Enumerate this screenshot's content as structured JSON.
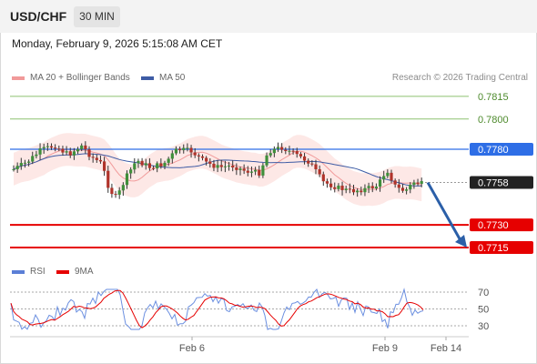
{
  "header": {
    "symbol": "USD/CHF",
    "timeframe": "30 MIN"
  },
  "datetime": "Monday, February 9, 2026 5:15:08 AM CET",
  "legend": {
    "ma20_label": "MA 20 + Bollinger Bands",
    "ma50_label": "MA 50",
    "credit": "Research © 2026 Trading Central",
    "rsi_label": "RSI",
    "ma9_label": "9MA"
  },
  "colors": {
    "ma20": "#f19a9a",
    "ma50": "#3e5ca5",
    "bull": "#3f8f3a",
    "bear": "#b0332a",
    "resistance": "#8dc270",
    "support": "#e60000",
    "pivot": "#2e6ee6",
    "arrow": "#2b5fa8"
  },
  "chart_data": {
    "type": "candlestick",
    "price_levels": [
      {
        "label": "0.7815",
        "kind": "resistance"
      },
      {
        "label": "0.7800",
        "kind": "resistance"
      },
      {
        "label": "0.7780",
        "kind": "pivot"
      },
      {
        "label": "0.7758",
        "kind": "last"
      },
      {
        "label": "0.7730",
        "kind": "support"
      },
      {
        "label": "0.7715",
        "kind": "support"
      }
    ],
    "rsi_ticks": [
      "70",
      "50",
      "30"
    ],
    "x_ticks": [
      "Feb 6",
      "Feb 9",
      "Feb 14"
    ],
    "forecast": {
      "direction": "down",
      "from": 0.7758,
      "to": 0.7715
    }
  }
}
